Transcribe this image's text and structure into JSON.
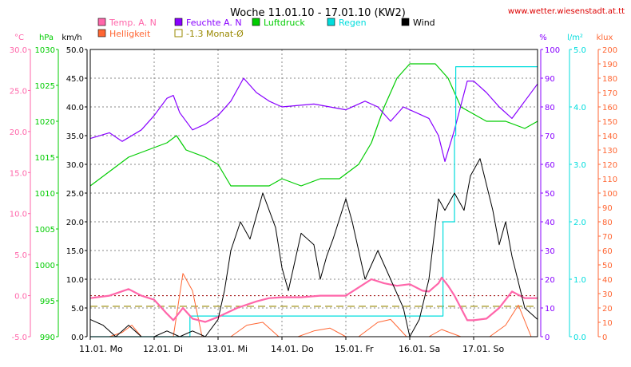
{
  "chart_data": {
    "type": "line",
    "title": "Woche 11.01.10 - 17.01.10 (KW2)",
    "source": "www.wetter.wiesenstadt.at.tt",
    "x": {
      "range_days": [
        0,
        7
      ],
      "tick_labels": [
        "11.01. Mo",
        "12.01. Di",
        "13.01. Mi",
        "14.01. Do",
        "15.01. Fr",
        "16.01. Sa",
        "17.01. So"
      ]
    },
    "legend": [
      {
        "key": "temp",
        "label": "Temp. A. N",
        "color": "#ff66aa"
      },
      {
        "key": "humidity",
        "label": "Feuchte A. N",
        "color": "#8800ff"
      },
      {
        "key": "pressure",
        "label": "Luftdruck",
        "color": "#00cc00"
      },
      {
        "key": "rain",
        "label": "Regen",
        "color": "#00dddd"
      },
      {
        "key": "wind",
        "label": "Wind",
        "color": "#000000"
      },
      {
        "key": "brightness",
        "label": "Helligkeit",
        "color": "#ff6633"
      },
      {
        "key": "monthly_avg",
        "label": "-1.3 Monat-Ø",
        "color": "#998800"
      }
    ],
    "axes": {
      "temp": {
        "unit": "°C",
        "ticks": [
          "30.0",
          "25.0",
          "20.0",
          "15.0",
          "10.0",
          "5.0",
          "0.0",
          "-5.0"
        ],
        "range": [
          -5,
          30
        ],
        "color": "#ff66aa"
      },
      "pressure": {
        "unit": "hPa",
        "ticks": [
          "1030",
          "1025",
          "1020",
          "1015",
          "1010",
          "1005",
          "1000",
          "995",
          "990"
        ],
        "range": [
          990,
          1030
        ],
        "color": "#00cc00"
      },
      "wind": {
        "unit": "km/h",
        "ticks": [
          "50.0",
          "45.0",
          "40.0",
          "35.0",
          "30.0",
          "25.0",
          "20.0",
          "15.0",
          "10.0",
          "5.0",
          "0.0"
        ],
        "range": [
          0,
          50
        ],
        "color": "#000000"
      },
      "humidity": {
        "unit": "%",
        "ticks": [
          "100",
          "90",
          "80",
          "70",
          "60",
          "50",
          "40",
          "30",
          "20",
          "10",
          "0"
        ],
        "range": [
          0,
          100
        ],
        "color": "#8800ff"
      },
      "rain": {
        "unit": "l/m²",
        "ticks": [
          "5.0",
          "4.0",
          "3.0",
          "2.0",
          "1.0",
          "0.0"
        ],
        "range": [
          0,
          5
        ],
        "color": "#00dddd"
      },
      "brightness": {
        "unit": "klux",
        "ticks": [
          "200",
          "190",
          "180",
          "170",
          "160",
          "150",
          "140",
          "130",
          "120",
          "110",
          "100",
          "90",
          "80",
          "70",
          "60",
          "50",
          "40",
          "30",
          "20",
          "10",
          "0"
        ],
        "range": [
          0,
          200
        ],
        "color": "#ff6633"
      }
    },
    "reference_lines": {
      "zero_temp": 0.0,
      "monthly_avg_temp": -1.3
    },
    "series": [
      {
        "key": "temp",
        "name": "Temp. A. N",
        "x": [
          0,
          0.3,
          0.6,
          0.8,
          1.0,
          1.2,
          1.3,
          1.45,
          1.6,
          1.8,
          2.0,
          2.3,
          2.6,
          2.8,
          3.0,
          3.3,
          3.6,
          4.0,
          4.2,
          4.4,
          4.6,
          4.8,
          5.0,
          5.2,
          5.3,
          5.45,
          5.5,
          5.6,
          5.7,
          5.9,
          6.0,
          6.2,
          6.4,
          6.6,
          6.8,
          7.0
        ],
        "values": [
          -0.3,
          0.0,
          0.8,
          0.0,
          -0.5,
          -2.2,
          -3.0,
          -1.5,
          -2.8,
          -3.2,
          -2.6,
          -1.5,
          -0.7,
          -0.3,
          -0.2,
          -0.2,
          0.0,
          0.0,
          1.0,
          2.0,
          1.5,
          1.2,
          1.4,
          0.6,
          0.5,
          1.5,
          2.2,
          1.2,
          0.0,
          -3.0,
          -3.0,
          -2.8,
          -1.5,
          0.5,
          -0.3,
          -0.3
        ]
      },
      {
        "key": "humidity",
        "name": "Feuchte A. N",
        "x": [
          0,
          0.3,
          0.5,
          0.8,
          1.0,
          1.2,
          1.3,
          1.4,
          1.6,
          1.8,
          2.0,
          2.2,
          2.4,
          2.6,
          2.8,
          3.0,
          3.5,
          4.0,
          4.3,
          4.5,
          4.7,
          4.9,
          5.1,
          5.3,
          5.45,
          5.55,
          5.7,
          5.9,
          6.0,
          6.2,
          6.4,
          6.6,
          6.8,
          7.0
        ],
        "values": [
          69,
          71,
          68,
          72,
          77,
          83,
          84,
          78,
          72,
          74,
          77,
          82,
          90,
          85,
          82,
          80,
          81,
          79,
          82,
          80,
          75,
          80,
          78,
          76,
          70,
          61,
          72,
          89,
          89,
          85,
          80,
          76,
          82,
          88
        ]
      },
      {
        "key": "pressure",
        "name": "Luftdruck",
        "x": [
          0,
          0.3,
          0.6,
          0.9,
          1.2,
          1.35,
          1.5,
          1.8,
          2.0,
          2.2,
          2.5,
          2.8,
          3.0,
          3.3,
          3.6,
          3.9,
          4.2,
          4.4,
          4.6,
          4.8,
          5.0,
          5.2,
          5.4,
          5.5,
          5.6,
          5.8,
          6.0,
          6.2,
          6.5,
          6.8,
          7.0
        ],
        "values": [
          1011,
          1013,
          1015,
          1016,
          1017,
          1018,
          1016,
          1015,
          1014,
          1011,
          1011,
          1011,
          1012,
          1011,
          1012,
          1012,
          1014,
          1017,
          1022,
          1026,
          1028,
          1028,
          1028,
          1027,
          1026,
          1022,
          1021,
          1020,
          1020,
          1019,
          1020
        ]
      },
      {
        "key": "wind",
        "name": "Wind",
        "x": [
          0,
          0.2,
          0.4,
          0.6,
          0.8,
          1.0,
          1.2,
          1.4,
          1.6,
          1.8,
          2.0,
          2.1,
          2.2,
          2.35,
          2.5,
          2.7,
          2.9,
          3.0,
          3.1,
          3.3,
          3.5,
          3.6,
          3.7,
          3.8,
          4.0,
          4.1,
          4.3,
          4.5,
          4.7,
          4.9,
          5.0,
          5.15,
          5.3,
          5.45,
          5.55,
          5.7,
          5.85,
          5.95,
          6.1,
          6.3,
          6.4,
          6.5,
          6.6,
          6.8,
          7.0
        ],
        "values": [
          3,
          2,
          0,
          2,
          0,
          0,
          1,
          0,
          1,
          0,
          3,
          8,
          15,
          20,
          17,
          25,
          19,
          12,
          8,
          18,
          16,
          10,
          14,
          17,
          24,
          20,
          10,
          15,
          10,
          5,
          0,
          3,
          10,
          24,
          22,
          25,
          22,
          28,
          31,
          22,
          16,
          20,
          14,
          5,
          3
        ]
      },
      {
        "key": "rain",
        "name": "Regen",
        "x": [
          0,
          1.55,
          1.56,
          5.5,
          5.52,
          5.7,
          5.72,
          7.0
        ],
        "values": [
          0,
          0,
          0.36,
          0.36,
          2.0,
          3.5,
          4.7,
          4.7
        ]
      },
      {
        "key": "brightness",
        "name": "Helligkeit",
        "x": [
          0,
          0.3,
          0.5,
          0.65,
          0.8,
          1.3,
          1.45,
          1.6,
          1.75,
          2.2,
          2.45,
          2.7,
          2.95,
          3.25,
          3.5,
          3.75,
          4.0,
          4.2,
          4.5,
          4.7,
          4.95,
          5.3,
          5.5,
          5.62,
          5.8,
          6.25,
          6.5,
          6.7,
          6.9
        ],
        "values": [
          0,
          0,
          3,
          8,
          0,
          0,
          44,
          32,
          0,
          0,
          8,
          10,
          0,
          0,
          4,
          6,
          0,
          0,
          10,
          12,
          0,
          0,
          5,
          3,
          0,
          0,
          8,
          22,
          0
        ]
      }
    ],
    "grid": true
  }
}
